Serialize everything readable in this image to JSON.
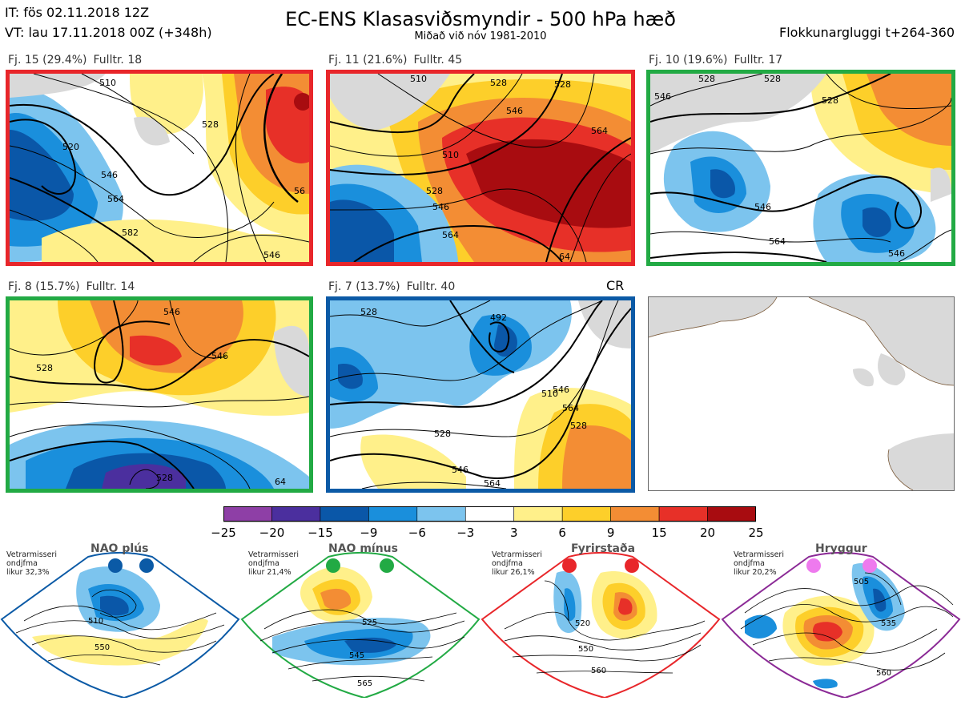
{
  "header": {
    "it_line": "IT: fös 02.11.2018 12Z",
    "vt_line": "VT: lau 17.11.2018 00Z  (+348h)",
    "title": "EC-ENS Klasasviðsmyndir - 500 hPa hæð",
    "subtitle": "Miðað við nóv 1981-2010",
    "window": "Flokkunargluggi t+264-360"
  },
  "clusters": [
    {
      "label": "Fj. 15 (29.4%)",
      "members": "Fulltr. 18",
      "border_color": "#e8262a",
      "contours": [
        "510",
        "520",
        "528",
        "546",
        "564",
        "582",
        "546",
        "56"
      ]
    },
    {
      "label": "Fj. 11 (21.6%)",
      "members": "Fulltr. 45",
      "border_color": "#e8262a",
      "contours": [
        "510",
        "528",
        "528",
        "546",
        "564",
        "510",
        "528",
        "546",
        "564",
        "64"
      ]
    },
    {
      "label": "Fj. 10 (19.6%)",
      "members": "Fulltr. 17",
      "border_color": "#22aa44",
      "contours": [
        "528",
        "546",
        "528",
        "528",
        "546",
        "564",
        "546"
      ]
    },
    {
      "label": "Fj. 8 (15.7%)",
      "members": "Fulltr. 14",
      "border_color": "#22aa44",
      "contours": [
        "528",
        "546",
        "546",
        "528",
        "64"
      ]
    },
    {
      "label": "Fj. 7 (13.7%)",
      "members": "Fulltr. 40",
      "border_color": "#0b5aa6",
      "cr": "CR",
      "contours": [
        "528",
        "492",
        "528",
        "510",
        "546",
        "564",
        "528",
        "546",
        "564"
      ]
    }
  ],
  "colorbar": {
    "labels": [
      "−25",
      "−20",
      "−15",
      "−9",
      "−6",
      "−3",
      "3",
      "6",
      "9",
      "15",
      "20",
      "25"
    ],
    "colors": [
      "#8e3fa6",
      "#4b2f9e",
      "#0a57a8",
      "#1a8fdc",
      "#7cc4ee",
      "#ffffff",
      "#fff08a",
      "#fdcf2a",
      "#f38d34",
      "#e73028",
      "#a80c10"
    ]
  },
  "regimes": [
    {
      "title": "NAO plús",
      "note": "Vetrarmisseri\nondjfma\nlikur 32,3%",
      "color": "#0b5aa6",
      "dot_color": "#0b5aa6",
      "contours": [
        "510",
        "550"
      ]
    },
    {
      "title": "NAO mínus",
      "note": "Vetrarmisseri\nondjfma\nlikur 21,4%",
      "color": "#22aa44",
      "dot_color": "#22aa44",
      "contours": [
        "525",
        "545",
        "565"
      ]
    },
    {
      "title": "Fyrirstaða",
      "note": "Vetrarmisseri\nondjfma\nlikur 26,1%",
      "color": "#e8262a",
      "dot_color": "#e8262a",
      "contours": [
        "520",
        "550",
        "560"
      ]
    },
    {
      "title": "Hryggur",
      "note": "Vetrarmisseri\nondjfma\nlikur 20,2%",
      "color": "#8b2a96",
      "dot_color": "#ee7aee",
      "contours": [
        "505",
        "535",
        "560"
      ]
    }
  ]
}
